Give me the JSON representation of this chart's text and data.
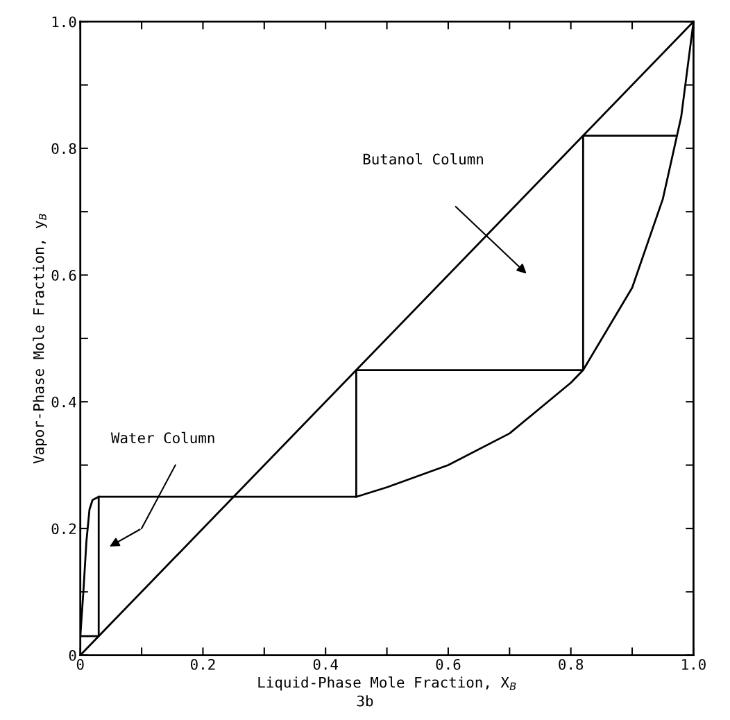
{
  "chart_data": {
    "type": "line",
    "xlabel": "Liquid-Phase Mole Fraction, X$_{B}$",
    "ylabel": "Vapor-Phase Mole Fraction, y$_{B}$",
    "xlim": [
      0,
      1.0
    ],
    "ylim": [
      0,
      1.0
    ],
    "xticks": [
      0,
      {
        "value": 0.1,
        "label": null
      },
      0.2,
      {
        "value": 0.3,
        "label": null
      },
      0.4,
      {
        "value": 0.5,
        "label": null
      },
      0.6,
      {
        "value": 0.7,
        "label": null
      },
      0.8,
      {
        "value": 0.9,
        "label": null
      },
      {
        "value": 1.0,
        "label": "1.0"
      }
    ],
    "yticks": [
      0,
      {
        "value": 0.1,
        "label": null
      },
      0.2,
      {
        "value": 0.3,
        "label": null
      },
      0.4,
      {
        "value": 0.5,
        "label": null
      },
      0.6,
      {
        "value": 0.7,
        "label": null
      },
      0.8,
      {
        "value": 0.9,
        "label": null
      },
      {
        "value": 1.0,
        "label": "1.0"
      }
    ],
    "grid": false,
    "legend": false,
    "marker": "none",
    "line_style": "solid",
    "series": [
      {
        "color": "#000000",
        "x": [
          0,
          0.005,
          0.01,
          0.015,
          0.02,
          0.03,
          0.45,
          0.5,
          0.6,
          0.7,
          0.8,
          0.82,
          0.9,
          0.95,
          0.98,
          1.0
        ],
        "values": [
          0.03,
          0.1,
          0.18,
          0.23,
          0.245,
          0.25,
          0.25,
          0.265,
          0.3,
          0.35,
          0.43,
          0.45,
          0.58,
          0.72,
          0.85,
          1.0
        ]
      },
      {
        "color": "#000000",
        "x": [
          0,
          1.0
        ],
        "values": [
          0,
          1.0
        ]
      },
      {
        "color": "#000000",
        "x": [
          0.97,
          0.82,
          0.82,
          0.45,
          0.45
        ],
        "values": [
          0.82,
          0.82,
          0.45,
          0.45,
          0.25
        ]
      },
      {
        "color": "#000000",
        "x": [
          0,
          0.03,
          0.03
        ],
        "values": [
          0.03,
          0.03,
          0.25
        ]
      }
    ],
    "annotations": [
      "Butanol Column",
      "Water Column",
      "3b"
    ]
  }
}
